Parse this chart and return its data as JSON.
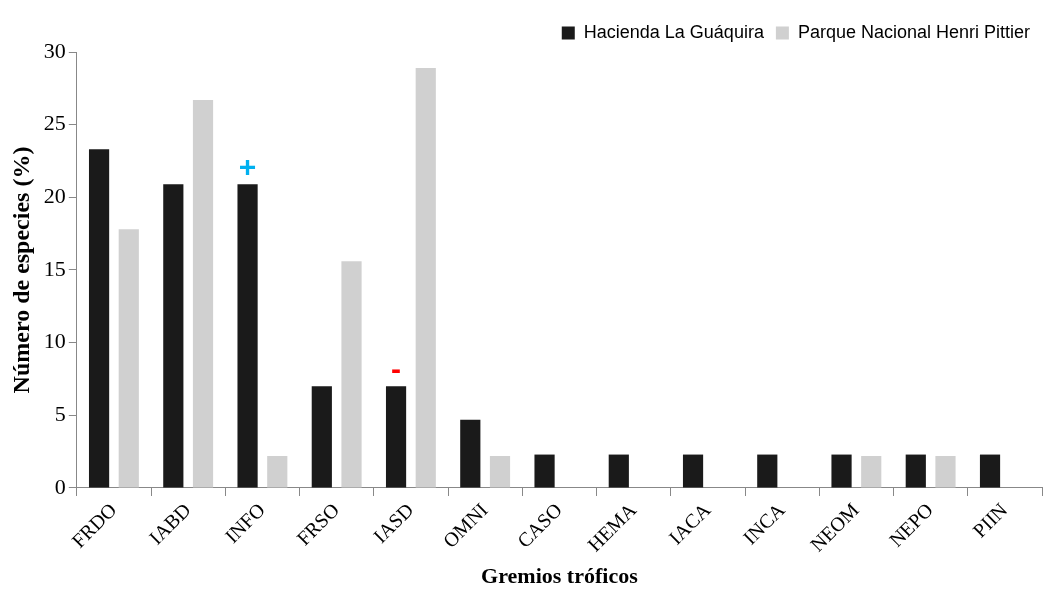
{
  "chart_data": {
    "type": "bar",
    "xlabel": "Gremios tróficos",
    "ylabel": "Número de especies (%)",
    "categories": [
      "FRDO",
      "IABD",
      "INFO",
      "FRSO",
      "IASD",
      "OMNI",
      "CASO",
      "HEMA",
      "IACA",
      "INCA",
      "NEOM",
      "NEPO",
      "PIIN"
    ],
    "series": [
      {
        "name": "Hacienda La Guáquira",
        "color": "#1a1a1a",
        "values": [
          23.3,
          20.9,
          20.9,
          7.0,
          7.0,
          4.7,
          2.3,
          2.3,
          2.3,
          2.3,
          2.3,
          2.3,
          2.3
        ]
      },
      {
        "name": "Parque Nacional Henri Pittier",
        "color": "#d0d0d0",
        "values": [
          17.8,
          26.7,
          2.2,
          15.6,
          28.9,
          2.2,
          null,
          null,
          null,
          null,
          2.2,
          2.2,
          null
        ]
      }
    ],
    "ylim": [
      0,
      30
    ],
    "yticks": [
      0,
      5,
      10,
      15,
      20,
      25,
      30
    ],
    "grid": false,
    "legend": "top right",
    "annotations": [
      {
        "text": "+",
        "x": "INFO",
        "y": 20.9
      },
      {
        "text": "-",
        "x": "IASD",
        "y": 7.0
      }
    ]
  }
}
